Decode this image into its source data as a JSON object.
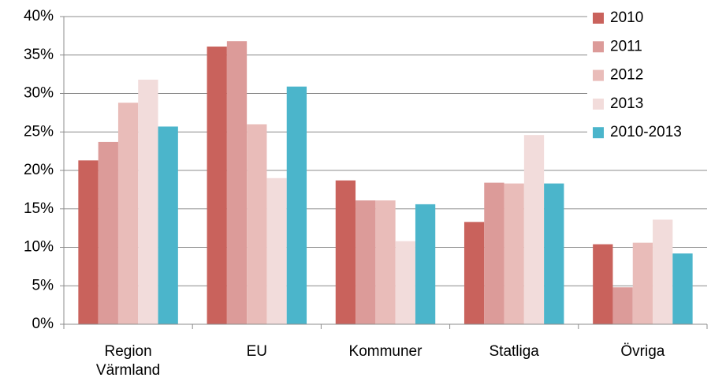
{
  "chart_data": {
    "type": "bar",
    "categories": [
      "Region Värmland",
      "EU",
      "Kommuner",
      "Statliga",
      "Övriga"
    ],
    "series": [
      {
        "name": "2010",
        "color": "#c9625c",
        "values": [
          21.3,
          36.1,
          18.7,
          13.3,
          10.4
        ]
      },
      {
        "name": "2011",
        "color": "#dc9b99",
        "values": [
          23.7,
          36.8,
          16.1,
          18.4,
          4.8
        ]
      },
      {
        "name": "2012",
        "color": "#e9bcb9",
        "values": [
          28.8,
          26.0,
          16.1,
          18.3,
          10.6
        ]
      },
      {
        "name": "2013",
        "color": "#f2dcdb",
        "values": [
          31.8,
          19.0,
          10.8,
          24.6,
          13.6
        ]
      },
      {
        "name": "2010-2013",
        "color": "#4bb5cb",
        "values": [
          25.7,
          30.9,
          15.6,
          18.3,
          9.2
        ]
      }
    ],
    "ylim": [
      0,
      40
    ],
    "yticks": [
      {
        "value": 0,
        "label": "0%"
      },
      {
        "value": 5,
        "label": "5%"
      },
      {
        "value": 10,
        "label": "10%"
      },
      {
        "value": 15,
        "label": "15%"
      },
      {
        "value": 20,
        "label": "20%"
      },
      {
        "value": 25,
        "label": "25%"
      },
      {
        "value": 30,
        "label": "30%"
      },
      {
        "value": 35,
        "label": "35%"
      },
      {
        "value": 40,
        "label": "40%"
      }
    ],
    "grid": true,
    "legend": "right"
  }
}
